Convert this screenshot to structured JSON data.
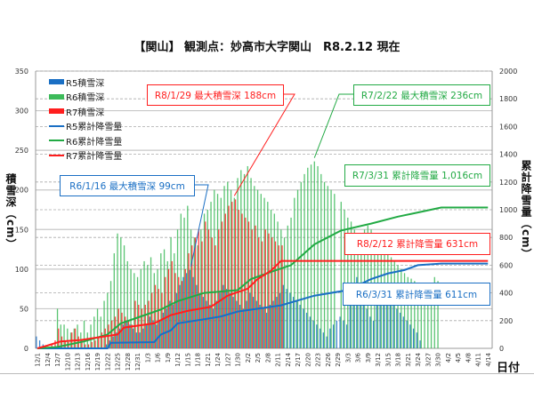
{
  "title": "【関山】 観測点：妙高市大字関山　R8.2.12 現在",
  "chart_data": {
    "type": "bar+line",
    "title": "【関山】 観測点：妙高市大字関山　R8.2.12 現在",
    "ylabel_left": "積雪深（cm）",
    "ylabel_right": "累計降雪量（cm）",
    "xlabel": "日付",
    "ylim_left": [
      0,
      350
    ],
    "yticks_left": [
      0,
      50,
      100,
      150,
      200,
      250,
      300,
      350
    ],
    "ylim_right": [
      0,
      2000
    ],
    "yticks_right": [
      0,
      200,
      400,
      600,
      800,
      1000,
      1200,
      1400,
      1600,
      1800,
      2000
    ],
    "grid": true,
    "legend_position": "top-left",
    "x_tick_labels": [
      "12/1",
      "12/4",
      "12/7",
      "12/10",
      "12/13",
      "12/16",
      "12/19",
      "12/22",
      "12/25",
      "12/28",
      "12/31",
      "1/3",
      "1/6",
      "1/9",
      "1/12",
      "1/15",
      "1/18",
      "1/21",
      "1/24",
      "1/27",
      "1/30",
      "2/2",
      "2/5",
      "2/8",
      "2/11",
      "2/14",
      "2/17",
      "2/20",
      "2/23",
      "2/26",
      "2/29",
      "3/3",
      "3/6",
      "3/9",
      "3/12",
      "3/15",
      "3/18",
      "3/21",
      "3/24",
      "3/27",
      "3/30",
      "4/2",
      "4/5",
      "4/8",
      "4/11",
      "4/14"
    ],
    "bar_series": [
      {
        "name": "R5積雪深",
        "color": "#1a6fc4",
        "start": "12/1",
        "values": [
          15,
          10,
          5,
          0,
          0,
          0,
          0,
          0,
          0,
          0,
          0,
          0,
          0,
          0,
          0,
          0,
          0,
          0,
          0,
          0,
          0,
          5,
          10,
          15,
          20,
          25,
          30,
          35,
          30,
          25,
          20,
          20,
          25,
          30,
          40,
          35,
          30,
          35,
          45,
          50,
          60,
          55,
          70,
          80,
          90,
          95,
          99,
          90,
          80,
          70,
          65,
          60,
          55,
          50,
          60,
          70,
          80,
          75,
          70,
          65,
          60,
          55,
          50,
          60,
          70,
          65,
          60,
          55,
          50,
          45,
          55,
          60,
          65,
          70,
          80,
          75,
          70,
          65,
          60,
          55,
          50,
          45,
          40,
          35,
          30,
          25,
          20,
          15,
          25,
          30,
          35,
          40,
          35,
          30,
          60,
          80,
          90,
          70,
          60,
          50,
          40,
          35,
          55,
          70,
          80,
          75,
          70,
          60,
          50,
          45,
          40,
          35,
          30,
          25,
          20,
          10
        ]
      },
      {
        "name": "R6積雪深",
        "color": "#3dbb5a",
        "start": "12/1",
        "values": [
          0,
          0,
          0,
          0,
          0,
          0,
          50,
          30,
          30,
          25,
          20,
          25,
          30,
          20,
          35,
          20,
          30,
          40,
          50,
          40,
          60,
          70,
          85,
          120,
          145,
          140,
          130,
          110,
          100,
          95,
          90,
          100,
          110,
          105,
          115,
          95,
          100,
          120,
          125,
          110,
          140,
          120,
          150,
          170,
          165,
          180,
          150,
          140,
          130,
          150,
          170,
          175,
          185,
          200,
          195,
          190,
          205,
          210,
          200,
          190,
          215,
          225,
          220,
          230,
          215,
          205,
          200,
          195,
          190,
          185,
          175,
          170,
          160,
          150,
          140,
          155,
          165,
          190,
          200,
          210,
          220,
          228,
          232,
          236,
          230,
          220,
          210,
          205,
          200,
          195,
          null,
          185,
          175,
          165,
          160,
          150,
          145,
          140,
          150,
          155,
          150,
          145,
          140,
          135,
          130,
          120,
          115,
          110,
          105,
          100,
          95,
          90,
          88,
          85,
          80,
          75,
          70,
          65,
          60,
          90,
          85
        ]
      },
      {
        "name": "R7積雪深",
        "color": "#ff1e1e",
        "start": "12/1",
        "values": [
          0,
          0,
          0,
          0,
          5,
          10,
          25,
          15,
          10,
          8,
          20,
          25,
          15,
          10,
          5,
          5,
          8,
          10,
          15,
          20,
          25,
          30,
          35,
          40,
          50,
          45,
          40,
          35,
          30,
          60,
          55,
          50,
          55,
          60,
          70,
          80,
          75,
          70,
          90,
          100,
          110,
          95,
          90,
          85,
          100,
          120,
          130,
          140,
          150,
          135,
          160,
          150,
          140,
          130,
          150,
          160,
          170,
          180,
          185,
          188,
          175,
          170,
          165,
          160,
          150,
          155,
          140,
          135,
          150,
          145,
          140,
          135,
          130,
          130
        ]
      }
    ],
    "line_series": [
      {
        "name": "R5累計降雪量",
        "color": "#1a6fc4",
        "axis": "right",
        "end": "4/14",
        "points": [
          [
            "12/1",
            0
          ],
          [
            "12/22",
            0
          ],
          [
            "12/23",
            40
          ],
          [
            "1/5",
            45
          ],
          [
            "1/7",
            100
          ],
          [
            "1/10",
            130
          ],
          [
            "1/12",
            180
          ],
          [
            "1/20",
            210
          ],
          [
            "1/25",
            230
          ],
          [
            "1/30",
            265
          ],
          [
            "2/12",
            310
          ],
          [
            "2/22",
            380
          ],
          [
            "3/3",
            420
          ],
          [
            "3/10",
            500
          ],
          [
            "3/15",
            540
          ],
          [
            "3/20",
            565
          ],
          [
            "3/24",
            600
          ],
          [
            "3/31",
            611
          ]
        ]
      },
      {
        "name": "R6累計降雪量",
        "color": "#22aa44",
        "axis": "right",
        "end": "4/14",
        "points": [
          [
            "12/1",
            0
          ],
          [
            "12/7",
            10
          ],
          [
            "12/15",
            50
          ],
          [
            "12/22",
            100
          ],
          [
            "12/26",
            180
          ],
          [
            "1/1",
            230
          ],
          [
            "1/7",
            280
          ],
          [
            "1/12",
            340
          ],
          [
            "1/20",
            400
          ],
          [
            "1/30",
            420
          ],
          [
            "2/3",
            500
          ],
          [
            "2/10",
            560
          ],
          [
            "2/15",
            600
          ],
          [
            "2/22",
            750
          ],
          [
            "3/1",
            850
          ],
          [
            "3/10",
            900
          ],
          [
            "3/18",
            950
          ],
          [
            "3/24",
            980
          ],
          [
            "3/31",
            1016
          ]
        ]
      },
      {
        "name": "R7累計降雪量",
        "color": "#ff1e1e",
        "axis": "right",
        "end": "4/14",
        "points": [
          [
            "12/1",
            0
          ],
          [
            "12/4",
            20
          ],
          [
            "12/8",
            50
          ],
          [
            "12/14",
            60
          ],
          [
            "12/25",
            100
          ],
          [
            "12/27",
            150
          ],
          [
            "1/5",
            180
          ],
          [
            "1/10",
            240
          ],
          [
            "1/15",
            270
          ],
          [
            "1/22",
            300
          ],
          [
            "1/27",
            380
          ],
          [
            "2/2",
            430
          ],
          [
            "2/5",
            500
          ],
          [
            "2/9",
            560
          ],
          [
            "2/12",
            631
          ]
        ]
      }
    ],
    "annotations": [
      {
        "text": "R8/1/29 最大積雪深 188cm",
        "color": "#ff1e1e",
        "date": "1/29",
        "value": 188,
        "axis": "left"
      },
      {
        "text": "R7/2/22 最大積雪深 236cm",
        "color": "#22aa44",
        "date": "2/22",
        "value": 236,
        "axis": "left"
      },
      {
        "text": "R6/1/16 最大積雪深 99cm",
        "color": "#1a6fc4",
        "date": "1/16",
        "value": 99,
        "axis": "left"
      },
      {
        "text": "R7/3/31 累計降雪量 1,016cm",
        "color": "#22aa44"
      },
      {
        "text": "R8/2/12 累計降雪量 631cm",
        "color": "#ff1e1e"
      },
      {
        "text": "R6/3/31 累計降雪量 611cm",
        "color": "#1a6fc4"
      }
    ]
  }
}
